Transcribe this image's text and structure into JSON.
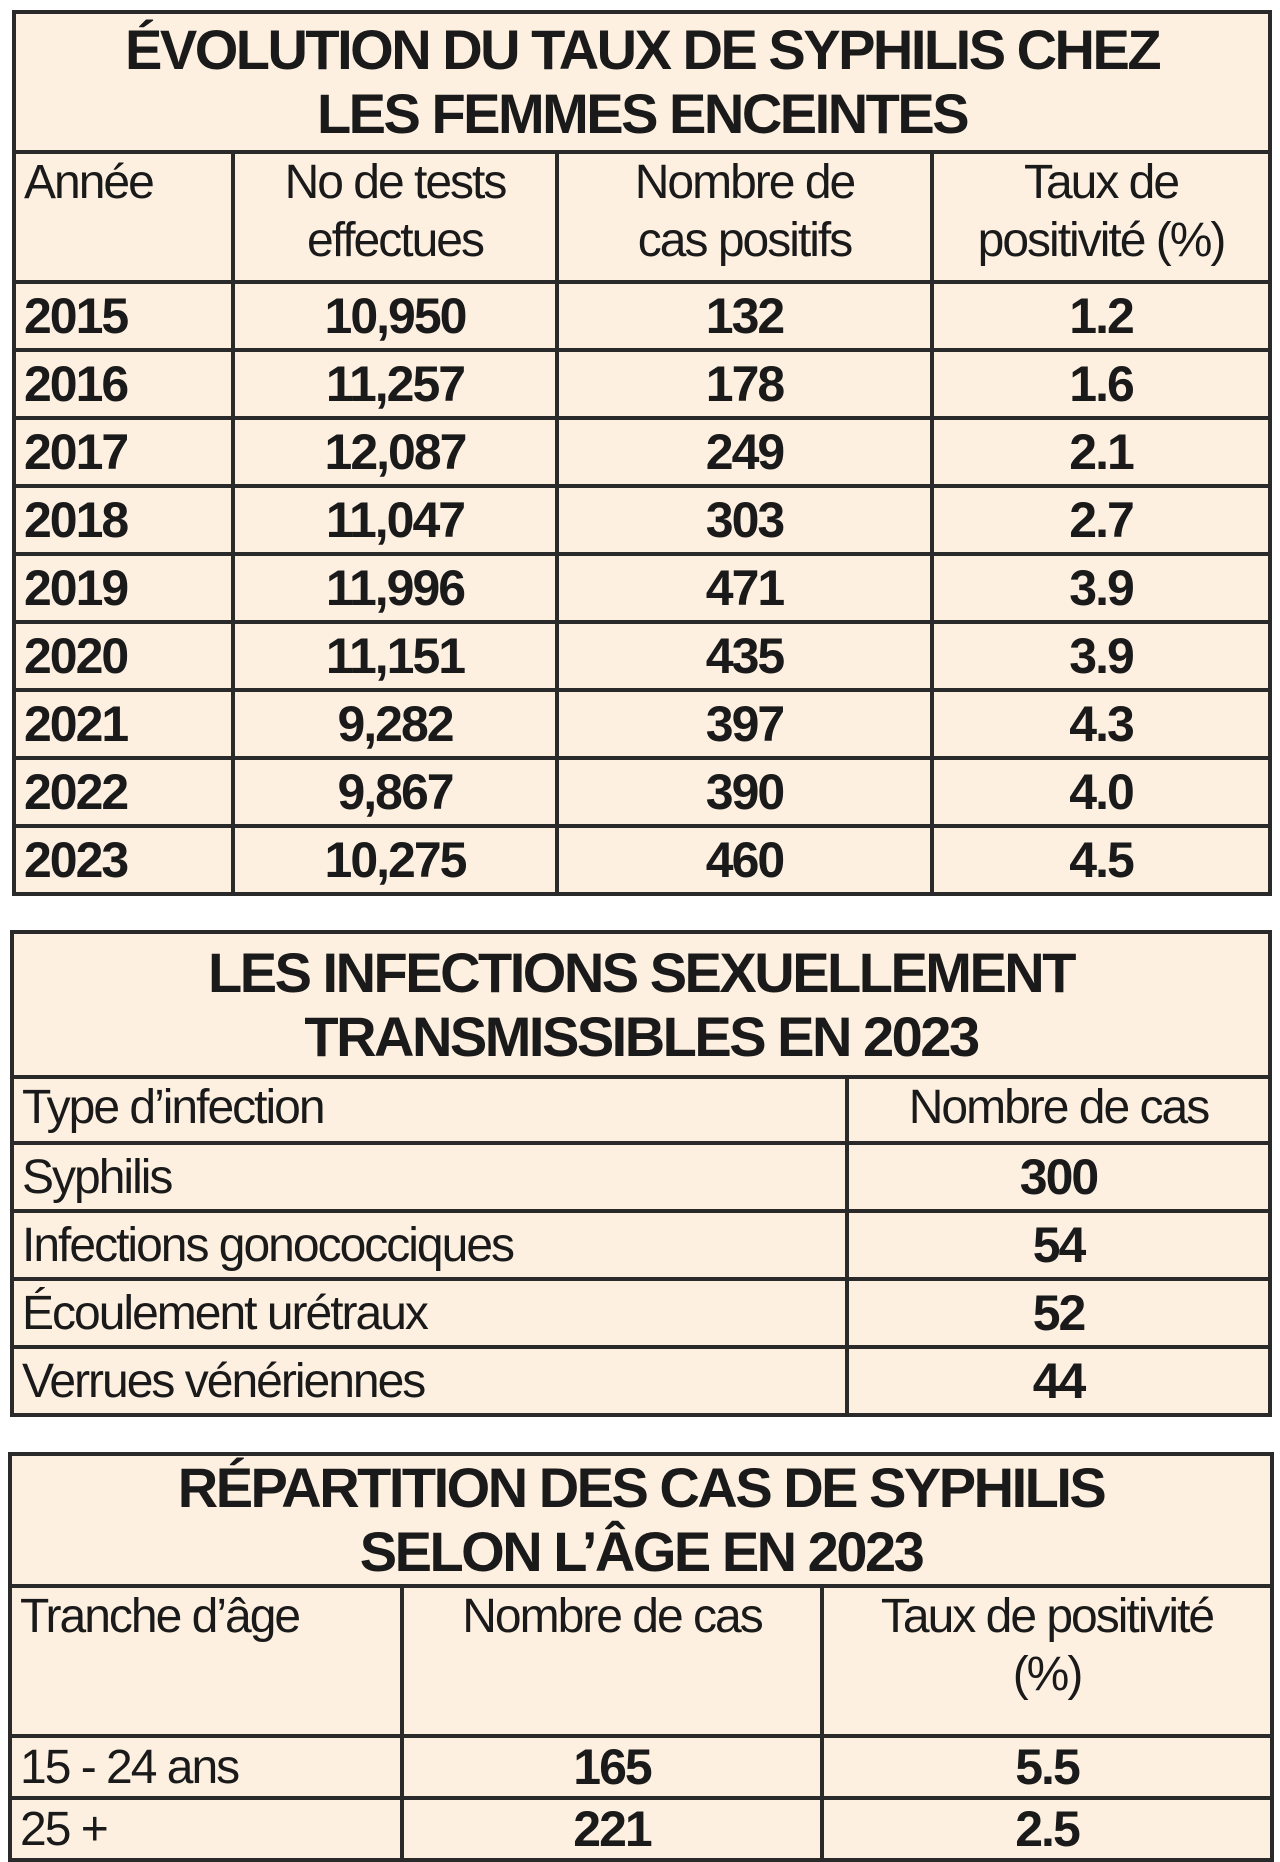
{
  "table1": {
    "title_line1": "ÉVOLUTION DU TAUX DE SYPHILIS CHEZ",
    "title_line2": "LES FEMMES ENCEINTES",
    "headers": [
      {
        "line1": "Année",
        "line2": ""
      },
      {
        "line1": "No de tests",
        "line2": "effectues"
      },
      {
        "line1": "Nombre de",
        "line2": "cas positifs"
      },
      {
        "line1": "Taux de",
        "line2": "positivité (%)"
      }
    ],
    "rows": [
      [
        "2015",
        "10,950",
        "132",
        "1.2"
      ],
      [
        "2016",
        "11,257",
        "178",
        "1.6"
      ],
      [
        "2017",
        "12,087",
        "249",
        "2.1"
      ],
      [
        "2018",
        "11,047",
        "303",
        "2.7"
      ],
      [
        "2019",
        "11,996",
        "471",
        "3.9"
      ],
      [
        "2020",
        "11,151",
        "435",
        "3.9"
      ],
      [
        "2021",
        "9,282",
        "397",
        "4.3"
      ],
      [
        "2022",
        "9,867",
        "390",
        "4.0"
      ],
      [
        "2023",
        "10,275",
        "460",
        "4.5"
      ]
    ]
  },
  "table2": {
    "title_line1": "LES INFECTIONS SEXUELLEMENT",
    "title_line2": "TRANSMISSIBLES EN 2023",
    "headers": [
      "Type d’infection",
      "Nombre de cas"
    ],
    "rows": [
      [
        "Syphilis",
        "300"
      ],
      [
        "Infections gonococciques",
        "54"
      ],
      [
        "Écoulement urétraux",
        "52"
      ],
      [
        "Verrues vénériennes",
        "44"
      ]
    ]
  },
  "table3": {
    "title_line1": "RÉPARTITION DES CAS DE SYPHILIS",
    "title_line2": "SELON L’ÂGE EN 2023",
    "headers": [
      {
        "line1": "Tranche d’âge",
        "line2": ""
      },
      {
        "line1": "Nombre de cas",
        "line2": ""
      },
      {
        "line1": "Taux de positivité",
        "line2": "(%)"
      }
    ],
    "rows": [
      [
        "15 - 24 ans",
        "165",
        "5.5"
      ],
      [
        "25 +",
        "221",
        "2.5"
      ]
    ]
  }
}
